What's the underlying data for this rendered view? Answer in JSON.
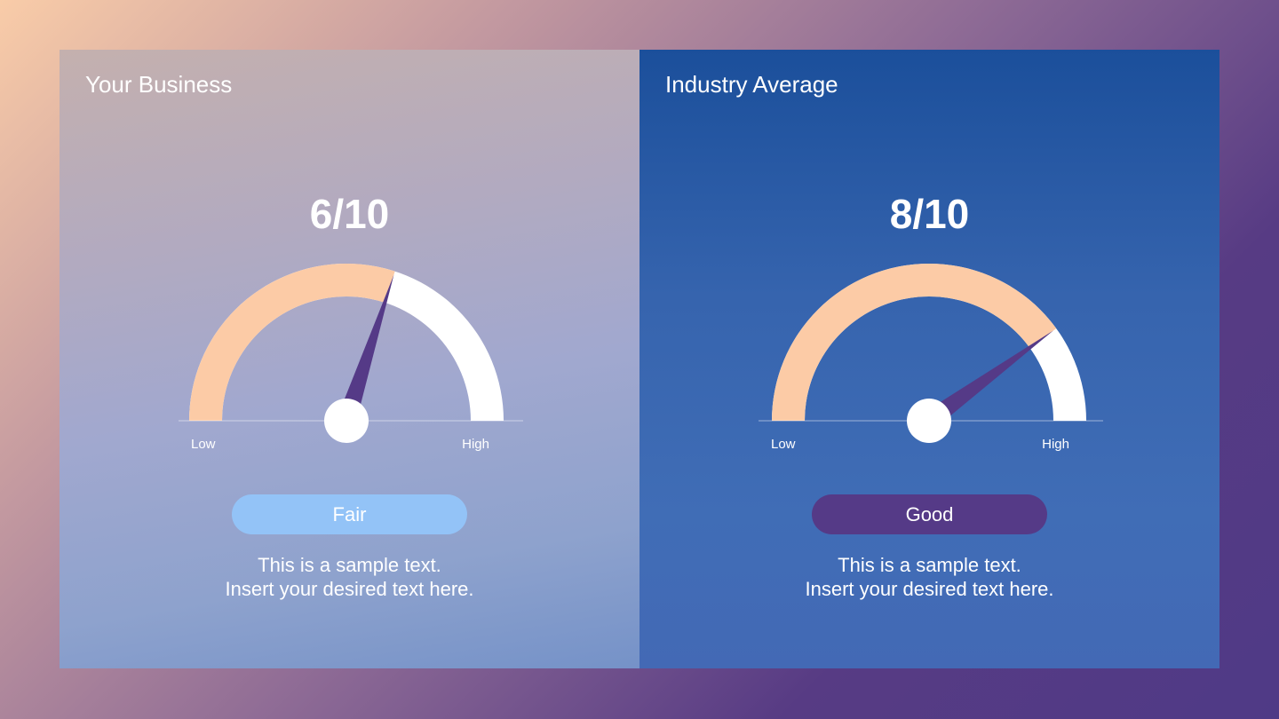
{
  "panels": [
    {
      "title": "Your Business",
      "score_label": "6/10",
      "score": 6,
      "max": 10,
      "gauge": {
        "low_label": "Low",
        "high_label": "High"
      },
      "rating": "Fair",
      "rating_color": "#93c3f7",
      "description_line1": "This is a sample text.",
      "description_line2": "Insert your desired text here."
    },
    {
      "title": "Industry Average",
      "score_label": "8/10",
      "score": 8,
      "max": 10,
      "gauge": {
        "low_label": "Low",
        "high_label": "High"
      },
      "rating": "Good",
      "rating_color": "#553a87",
      "description_line1": "This is a sample text.",
      "description_line2": "Insert your desired text here."
    }
  ],
  "colors": {
    "gauge_fill": "#fccba6",
    "gauge_track": "#ffffff",
    "needle": "#553a87",
    "hub": "#ffffff"
  },
  "chart_data": [
    {
      "type": "gauge",
      "title": "Your Business",
      "value": 6,
      "range": [
        0,
        10
      ],
      "labels": [
        "Low",
        "High"
      ],
      "category": "Fair"
    },
    {
      "type": "gauge",
      "title": "Industry Average",
      "value": 8,
      "range": [
        0,
        10
      ],
      "labels": [
        "Low",
        "High"
      ],
      "category": "Good"
    }
  ]
}
